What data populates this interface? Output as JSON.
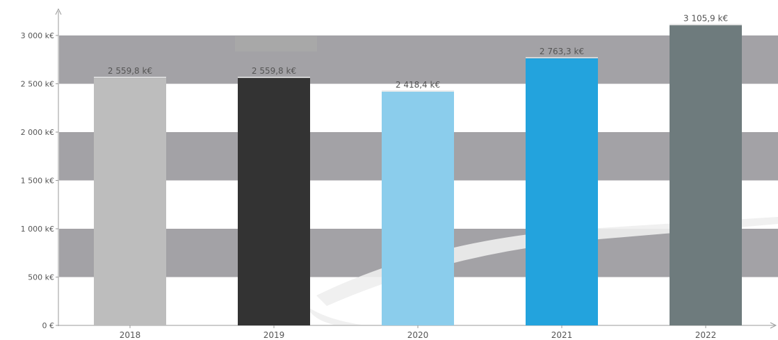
{
  "chart_data": {
    "type": "bar",
    "categories": [
      "2018",
      "2019",
      "2020",
      "2021",
      "2022"
    ],
    "values": [
      2559.8,
      2559.8,
      2418.4,
      2763.3,
      3105.9
    ],
    "data_labels": [
      "2 559,8 k€",
      "2 559,8 k€",
      "2 418,4 k€",
      "2 763,3 k€",
      "3 105,9 k€"
    ],
    "bar_colors": [
      "#bdbdbd",
      "#333333",
      "#8bcdec",
      "#23a3dd",
      "#6e7b7d"
    ],
    "y_ticks": [
      0,
      500,
      1000,
      1500,
      2000,
      2500,
      3000
    ],
    "y_tick_labels": [
      "0 €",
      "500 k€",
      "1 000 k€",
      "1 500 k€",
      "2 000 k€",
      "2 500 k€",
      "3 000 k€"
    ],
    "ylim": [
      0,
      3250
    ],
    "title": "",
    "xlabel": "",
    "ylabel": "",
    "grid": "alternating horizontal bands",
    "band_color": "#a3a2a6",
    "legend": "none"
  }
}
